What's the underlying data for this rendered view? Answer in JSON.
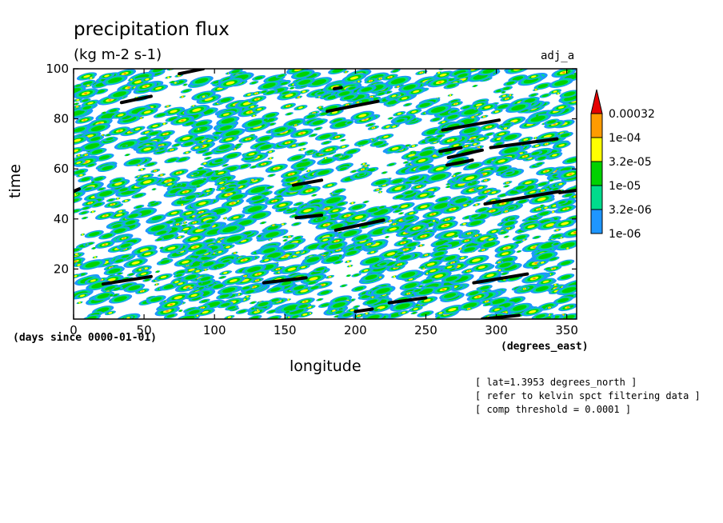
{
  "chart_data": {
    "type": "heatmap",
    "title": "precipitation flux",
    "units": "(kg m-2 s-1)",
    "run_label": "adj_a",
    "xlabel": "longitude",
    "x_units": "(degrees_east)",
    "ylabel": "time",
    "time_origin": "(days since 0000-01-01)",
    "xlim": [
      0,
      357
    ],
    "ylim": [
      0,
      100
    ],
    "xticks": [
      0,
      50,
      100,
      150,
      200,
      250,
      300,
      350
    ],
    "yticks": [
      20,
      40,
      60,
      80,
      100
    ],
    "colorbar": {
      "levels": [
        "1e-06",
        "3.2e-06",
        "1e-05",
        "3.2e-05",
        "1e-04",
        "0.00032"
      ],
      "colors": [
        "#1e96ff",
        "#00dc8c",
        "#00d200",
        "#ffff00",
        "#ff9b00",
        "#e60000"
      ],
      "extend": "max"
    },
    "field_note": "dense small-scale precipitation patches drifting eastward in time; white where flux < 1e-06",
    "threshold_segments": [
      {
        "lon": [
          34,
          55
        ],
        "time": [
          86.5,
          89
        ]
      },
      {
        "lon": [
          75,
          92
        ],
        "time": [
          98,
          100
        ]
      },
      {
        "lon": [
          180,
          216
        ],
        "time": [
          83,
          87
        ]
      },
      {
        "lon": [
          185,
          190
        ],
        "time": [
          92,
          92.5
        ]
      },
      {
        "lon": [
          262,
          302
        ],
        "time": [
          75.5,
          79.5
        ]
      },
      {
        "lon": [
          260,
          275
        ],
        "time": [
          67,
          68.5
        ]
      },
      {
        "lon": [
          266,
          290
        ],
        "time": [
          64.5,
          67.5
        ]
      },
      {
        "lon": [
          265,
          283
        ],
        "time": [
          61.5,
          63.5
        ]
      },
      {
        "lon": [
          296,
          343
        ],
        "time": [
          68.5,
          72
        ]
      },
      {
        "lon": [
          292,
          345
        ],
        "time": [
          46,
          51
        ]
      },
      {
        "lon": [
          345,
          357
        ],
        "time": [
          50.5,
          51.5
        ]
      },
      {
        "lon": [
          156,
          176
        ],
        "time": [
          53.5,
          55.5
        ]
      },
      {
        "lon": [
          158,
          176
        ],
        "time": [
          40.5,
          41.5
        ]
      },
      {
        "lon": [
          186,
          220
        ],
        "time": [
          35.5,
          39.5
        ]
      },
      {
        "lon": [
          21,
          55
        ],
        "time": [
          14,
          17
        ]
      },
      {
        "lon": [
          135,
          165
        ],
        "time": [
          14.5,
          16.5
        ]
      },
      {
        "lon": [
          284,
          322
        ],
        "time": [
          14.5,
          18
        ]
      },
      {
        "lon": [
          224,
          250
        ],
        "time": [
          6.5,
          8.5
        ]
      },
      {
        "lon": [
          200,
          212
        ],
        "time": [
          3,
          4
        ]
      },
      {
        "lon": [
          290,
          316
        ],
        "time": [
          0,
          1.5
        ]
      },
      {
        "lon": [
          0,
          4
        ],
        "time": [
          51,
          52
        ]
      }
    ]
  },
  "notes": [
    "[ lat=1.3953 degrees_north ]",
    "[ refer to kelvin spct filtering data ]",
    "[ comp threshold = 0.0001 ]"
  ]
}
